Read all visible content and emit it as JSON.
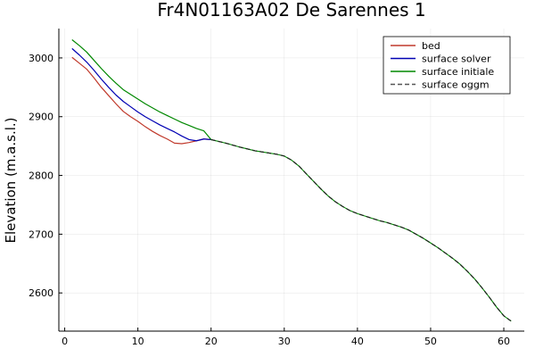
{
  "chart_data": {
    "type": "line",
    "title": "Fr4N01163A02 De Sarennes 1",
    "xlabel": "",
    "ylabel": "Elevation (m.a.s.l.)",
    "xlim": [
      -0.8,
      62.8
    ],
    "ylim": [
      2535,
      3050
    ],
    "xticks": [
      0,
      10,
      20,
      30,
      40,
      50,
      60
    ],
    "yticks": [
      2600,
      2700,
      2800,
      2900,
      3000
    ],
    "grid": true,
    "legend_position": "top-right",
    "series": [
      {
        "name": "bed",
        "color": "#c0392b",
        "dash": "solid",
        "x": [
          1,
          2,
          3,
          4,
          5,
          6,
          7,
          8,
          9,
          10,
          11,
          12,
          13,
          14,
          15,
          16,
          17,
          18,
          19,
          20
        ],
        "y": [
          3001,
          2991,
          2981,
          2966,
          2950,
          2936,
          2922,
          2909,
          2900,
          2892,
          2883,
          2875,
          2868,
          2862,
          2855,
          2854,
          2856,
          2859,
          2862,
          2861
        ]
      },
      {
        "name": "surface solver",
        "color": "#0000b3",
        "dash": "solid",
        "x": [
          1,
          2,
          3,
          4,
          5,
          6,
          7,
          8,
          9,
          10,
          11,
          12,
          13,
          14,
          15,
          16,
          17,
          18,
          19,
          20
        ],
        "y": [
          3016,
          3005,
          2993,
          2979,
          2964,
          2950,
          2937,
          2926,
          2917,
          2908,
          2900,
          2893,
          2886,
          2880,
          2874,
          2867,
          2861,
          2859,
          2862,
          2861
        ]
      },
      {
        "name": "surface initiale",
        "color": "#008800",
        "dash": "solid",
        "x": [
          1,
          2,
          3,
          4,
          5,
          6,
          7,
          8,
          9,
          10,
          11,
          12,
          13,
          14,
          15,
          16,
          17,
          18,
          19,
          20
        ],
        "y": [
          3031,
          3021,
          3010,
          2996,
          2982,
          2969,
          2957,
          2946,
          2938,
          2930,
          2922,
          2915,
          2908,
          2902,
          2896,
          2890,
          2885,
          2880,
          2876,
          2861
        ]
      },
      {
        "name": "surface oggm",
        "color": "#555555",
        "dash": "dashed",
        "x": [
          20,
          22,
          24,
          26,
          28,
          29,
          30,
          31,
          32,
          33,
          34,
          35,
          36,
          37,
          38,
          39,
          40,
          41,
          42,
          43,
          44,
          45,
          46,
          47,
          48,
          49,
          50,
          51,
          52,
          53,
          54,
          55,
          56,
          57,
          58,
          59,
          60,
          61
        ],
        "y": [
          2861,
          2855,
          2848,
          2842,
          2838,
          2836,
          2833,
          2826,
          2816,
          2803,
          2790,
          2777,
          2765,
          2755,
          2747,
          2740,
          2735,
          2731,
          2727,
          2723,
          2720,
          2716,
          2712,
          2707,
          2700,
          2693,
          2685,
          2677,
          2668,
          2659,
          2649,
          2637,
          2624,
          2609,
          2593,
          2576,
          2561,
          2552
        ]
      }
    ],
    "overlay": {
      "note_free": true,
      "x": [
        20,
        22,
        24,
        26,
        28,
        29,
        30,
        31,
        32,
        33,
        34,
        35,
        36,
        37,
        38,
        39,
        40,
        41,
        42,
        43,
        44,
        45,
        46,
        47,
        48,
        49,
        50,
        51,
        52,
        53,
        54,
        55,
        56,
        57,
        58,
        59,
        60,
        61
      ]
    }
  }
}
